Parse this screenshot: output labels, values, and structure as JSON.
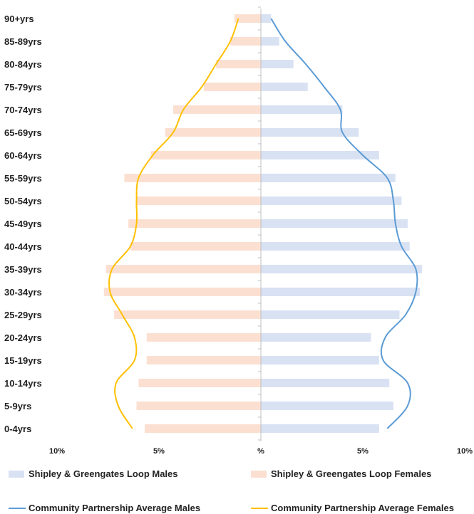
{
  "chart_data": {
    "type": "bar",
    "orientation": "horizontal-population-pyramid",
    "categories": [
      "0-4yrs",
      "5-9yrs",
      "10-14yrs",
      "15-19yrs",
      "20-24yrs",
      "25-29yrs",
      "30-34yrs",
      "35-39yrs",
      "40-44yrs",
      "45-49yrs",
      "50-54yrs",
      "55-59yrs",
      "60-64yrs",
      "65-69yrs",
      "70-74yrs",
      "75-79yrs",
      "80-84yrs",
      "85-89yrs",
      "90+yrs"
    ],
    "x_tick_labels": [
      "10%",
      "5%",
      "%",
      "5%",
      "10%"
    ],
    "xlim": [
      -10,
      10
    ],
    "series": [
      {
        "name": "Shipley & Greengates Loop Males",
        "kind": "bar",
        "side": "right",
        "color": "#d9e2f3",
        "values": [
          5.8,
          6.5,
          6.3,
          5.8,
          5.4,
          6.8,
          7.8,
          7.9,
          7.3,
          7.2,
          6.9,
          6.6,
          5.8,
          4.8,
          4.0,
          2.3,
          1.6,
          0.9,
          0.5
        ]
      },
      {
        "name": "Shipley & Greengates Loop Females",
        "kind": "bar",
        "side": "left",
        "color": "#fbe0d2",
        "values": [
          5.7,
          6.1,
          6.0,
          5.6,
          5.6,
          7.2,
          7.7,
          7.6,
          6.4,
          6.5,
          6.1,
          6.7,
          5.4,
          4.7,
          4.3,
          2.8,
          2.2,
          1.5,
          1.3
        ]
      },
      {
        "name": "Community Partnership Average Males",
        "kind": "line",
        "side": "right",
        "color": "#5b9bd5",
        "values": [
          6.2,
          7.2,
          7.2,
          6.0,
          6.1,
          7.1,
          7.6,
          7.6,
          6.9,
          6.6,
          6.5,
          6.2,
          5.0,
          4.0,
          3.9,
          3.1,
          2.2,
          1.2,
          0.5
        ]
      },
      {
        "name": "Community Partnership Average Females",
        "kind": "line",
        "side": "left",
        "color": "#ffc000",
        "values": [
          6.3,
          7.0,
          7.1,
          6.2,
          6.2,
          6.8,
          7.4,
          7.3,
          6.4,
          6.1,
          6.1,
          6.0,
          5.3,
          4.3,
          3.8,
          2.9,
          2.2,
          1.5,
          1.1
        ]
      }
    ],
    "legend_position": "bottom",
    "grid": false
  }
}
